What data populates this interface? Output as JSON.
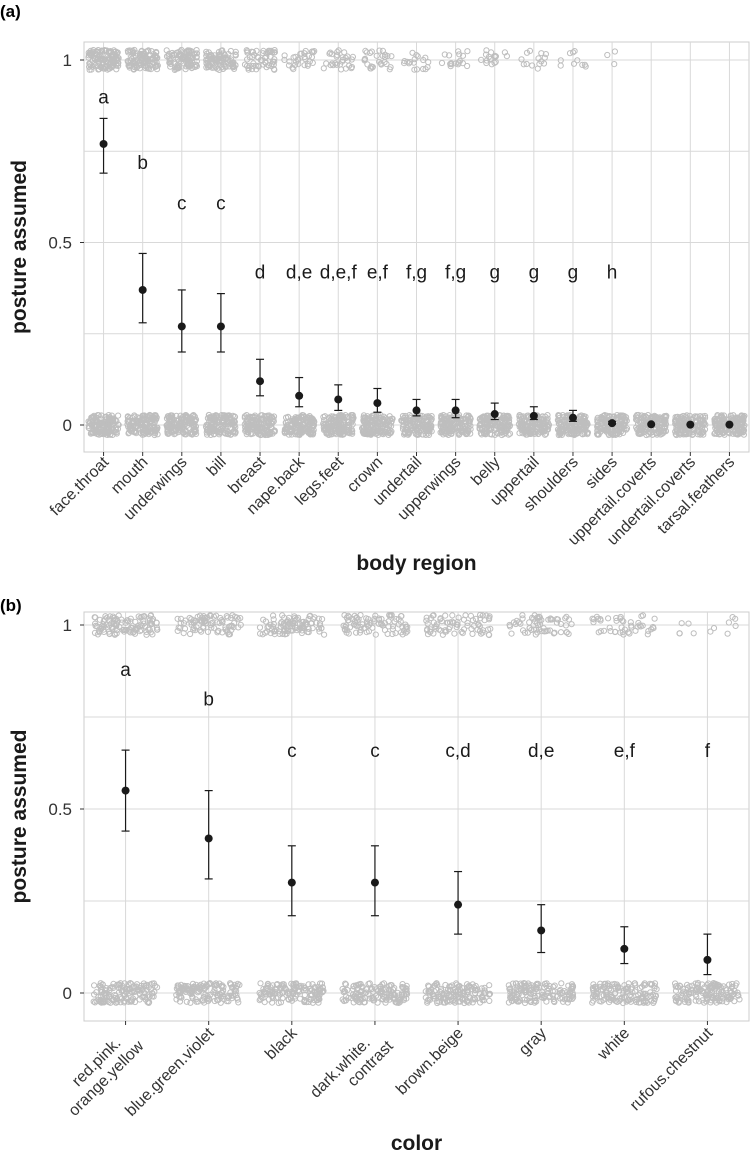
{
  "colors": {
    "grid": "#d9d9d9",
    "jitter": "#bebebe",
    "point": "#1a1a1a",
    "panel_border": "#cccccc"
  },
  "chart_data": [
    {
      "panel_label": "(a)",
      "type": "scatter",
      "xlabel": "body region",
      "ylabel": "posture assumed",
      "ylim": [
        -0.08,
        1.05
      ],
      "yticks": [
        0,
        0.5,
        1
      ],
      "ytick_labels": [
        "0",
        "0.5",
        "1"
      ],
      "grid": true,
      "categories": [
        "face.throat",
        "mouth",
        "underwings",
        "bill",
        "breast",
        "nape.back",
        "legs.feet",
        "crown",
        "undertail",
        "upperwings",
        "belly",
        "uppertail",
        "shoulders",
        "sides",
        "uppertail.coverts",
        "undertail.coverts",
        "tarsal.feathers"
      ],
      "mean": [
        0.77,
        0.37,
        0.27,
        0.27,
        0.12,
        0.08,
        0.07,
        0.06,
        0.04,
        0.04,
        0.03,
        0.025,
        0.02,
        0.005,
        0.002,
        0.001,
        0.001
      ],
      "lower": [
        0.69,
        0.28,
        0.2,
        0.2,
        0.08,
        0.05,
        0.04,
        0.035,
        0.025,
        0.02,
        0.015,
        0.015,
        0.01,
        0.002,
        0.001,
        0.0,
        0.0
      ],
      "upper": [
        0.84,
        0.47,
        0.37,
        0.36,
        0.18,
        0.13,
        0.11,
        0.1,
        0.07,
        0.07,
        0.06,
        0.05,
        0.04,
        0.01,
        0.005,
        0.003,
        0.003
      ],
      "letters": [
        "a",
        "b",
        "c",
        "c",
        "d",
        "d,e",
        "d,e,f",
        "e,f",
        "f,g",
        "f,g",
        "g",
        "g",
        "g",
        "h",
        "",
        "",
        ""
      ],
      "letter_y": [
        0.9,
        0.72,
        0.61,
        0.61,
        0.42,
        0.42,
        0.42,
        0.42,
        0.42,
        0.42,
        0.42,
        0.42,
        0.42,
        0.42,
        null,
        null,
        null
      ],
      "n_ones": [
        120,
        110,
        100,
        90,
        55,
        30,
        30,
        28,
        18,
        18,
        16,
        14,
        10,
        3,
        0,
        0,
        0
      ]
    },
    {
      "panel_label": "(b)",
      "type": "scatter",
      "xlabel": "color",
      "ylabel": "posture assumed",
      "ylim": [
        -0.08,
        1.05
      ],
      "yticks": [
        0,
        0.5,
        1
      ],
      "ytick_labels": [
        "0",
        "0.5",
        "1"
      ],
      "grid": true,
      "categories": [
        "red.pink.\norange.yellow",
        "blue.green.violet",
        "black",
        "dark.white.\ncontrast",
        "brown.beige",
        "gray",
        "white",
        "rufous.chestnut"
      ],
      "mean": [
        0.55,
        0.42,
        0.3,
        0.3,
        0.24,
        0.17,
        0.12,
        0.09
      ],
      "lower": [
        0.44,
        0.31,
        0.21,
        0.21,
        0.16,
        0.11,
        0.08,
        0.05
      ],
      "upper": [
        0.66,
        0.55,
        0.4,
        0.4,
        0.33,
        0.24,
        0.18,
        0.16
      ],
      "letters": [
        "a",
        "b",
        "c",
        "c",
        "c,d",
        "d,e",
        "e,f",
        "f"
      ],
      "letter_y": [
        0.88,
        0.8,
        0.66,
        0.66,
        0.66,
        0.66,
        0.66,
        0.66
      ],
      "n_ones": [
        110,
        85,
        95,
        85,
        75,
        60,
        45,
        12
      ]
    }
  ]
}
